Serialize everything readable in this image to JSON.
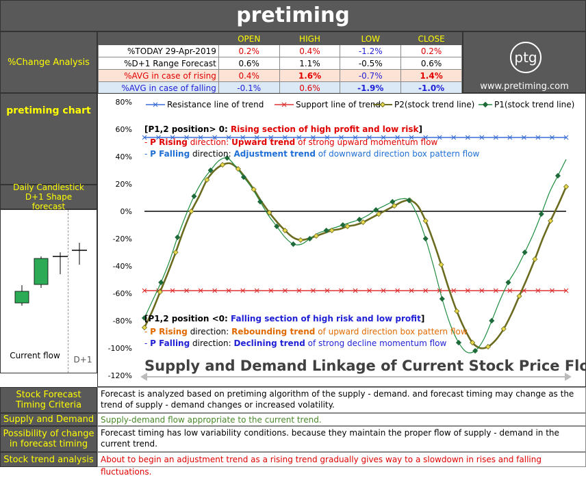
{
  "app_title": "pretiming",
  "analysis": {
    "section_label": "%Change Analysis",
    "headers": [
      "OPEN",
      "HIGH",
      "LOW",
      "CLOSE"
    ],
    "rows": [
      {
        "label": "%TODAY 29-Apr-2019",
        "values": [
          "0.2%",
          "0.4%",
          "-1.2%",
          "0.2%"
        ]
      },
      {
        "label": "%D+1 Range Forecast",
        "values": [
          "0.6%",
          "1.1%",
          "-0.5%",
          "0.6%"
        ]
      },
      {
        "label": "%AVG in case of rising",
        "values": [
          "0.4%",
          "1.6%",
          "-0.7%",
          "1.4%"
        ]
      },
      {
        "label": "%AVG in case of falling",
        "values": [
          "-0.1%",
          "0.6%",
          "-1.9%",
          "-1.0%"
        ]
      }
    ]
  },
  "logo": {
    "text": "ptg",
    "url": "www.pretiming.com"
  },
  "side": {
    "chart_label": "pretiming chart",
    "candle_label": "Daily Candlestick D+1 Shape forecast",
    "current_flow": "Current flow",
    "d1": "D+1"
  },
  "chart_data": {
    "type": "line",
    "ylim": [
      -120,
      80
    ],
    "yticks": [
      "80%",
      "60%",
      "40%",
      "20%",
      "0%",
      "-20%",
      "-40%",
      "-60%",
      "-80%",
      "-100%",
      "-120%"
    ],
    "series": [
      {
        "name": "Resistance line of trend",
        "color": "#3a6fd8",
        "values": [
          54,
          54,
          54,
          54,
          54,
          54,
          54,
          54,
          54,
          54,
          54,
          54,
          54,
          54,
          54,
          54,
          54,
          54,
          54,
          54,
          54,
          54,
          54,
          54,
          54,
          54,
          54,
          54,
          54,
          54,
          54,
          54,
          54,
          54,
          54,
          54,
          54,
          54,
          54,
          54,
          54,
          54,
          54,
          54,
          54,
          54,
          54,
          54,
          54,
          54,
          54,
          54,
          54,
          54,
          54,
          54,
          54,
          54,
          54,
          54,
          54
        ]
      },
      {
        "name": "Support line of trend",
        "color": "#e03030",
        "values": [
          -58,
          -58,
          -58,
          -58,
          -58,
          -58,
          -58,
          -58,
          -58,
          -58,
          -58,
          -58,
          -58,
          -58,
          -58,
          -58,
          -58,
          -58,
          -58,
          -58,
          -58,
          -58,
          -58,
          -58,
          -58,
          -58,
          -58,
          -58,
          -58,
          -58,
          -58,
          -58,
          -58,
          -58,
          -58,
          -58,
          -58,
          -58,
          -58,
          -58,
          -58,
          -58,
          -58,
          -58,
          -58,
          -58,
          -58,
          -58,
          -58,
          -58,
          -58,
          -58,
          -58,
          -58,
          -58,
          -58,
          -58,
          -58,
          -58,
          -58,
          -58
        ]
      },
      {
        "name": "P2(stock trend line)",
        "color": "#6b6b1f",
        "values": [
          -85,
          -73,
          -59,
          -45,
          -30,
          -14,
          0,
          11,
          23,
          30,
          34,
          35,
          31,
          24,
          16,
          7,
          -1,
          -8,
          -14,
          -19,
          -21,
          -20,
          -18,
          -16,
          -14,
          -13,
          -11,
          -10,
          -8,
          -5,
          -2,
          1,
          4,
          7,
          8,
          4,
          -7,
          -22,
          -39,
          -57,
          -73,
          -86,
          -96,
          -100,
          -99,
          -94,
          -86,
          -75,
          -62,
          -49,
          -35,
          -20,
          -7,
          5,
          18
        ]
      },
      {
        "name": "P1(stock trend line)",
        "color": "#1e8c3e",
        "values": [
          -78,
          -65,
          -52,
          -37,
          -19,
          -3,
          11,
          22,
          30,
          37,
          39,
          33,
          25,
          17,
          7,
          -3,
          -11,
          -19,
          -24,
          -24,
          -20,
          -16,
          -14,
          -12,
          -10,
          -8,
          -6,
          -3,
          1,
          4,
          7,
          9,
          8,
          -3,
          -20,
          -41,
          -64,
          -83,
          -96,
          -103,
          -102,
          -94,
          -80,
          -65,
          -52,
          -42,
          -30,
          -17,
          -2,
          14,
          26,
          38
        ]
      }
    ]
  },
  "annotations": {
    "up_head_pre": "[P1,2 position> 0: ",
    "up_head_main": "Rising section of high profit and low risk",
    "up_head_post": "]",
    "up_l1_pre": "- ",
    "up_l1_dir": "P Rising",
    "up_l1_mid": " direction: ",
    "up_l1_trend": "Upward trend",
    "up_l1_tail": " of strong upward momentum flow",
    "up_l2_pre": "- ",
    "up_l2_dir": "P Falling",
    "up_l2_mid": " direction: ",
    "up_l2_trend": "Adjustment trend",
    "up_l2_tail": " of downward direction box pattern flow",
    "down_head_pre": "[P1,2 position <0: ",
    "down_head_main": "Falling section of high risk and low profit",
    "down_head_post": "]",
    "dn_l1_pre": "- ",
    "dn_l1_dir": "P Rising",
    "dn_l1_mid": " direction: ",
    "dn_l1_trend": "Rebounding trend",
    "dn_l1_tail": " of upward direction box pattern flow",
    "dn_l2_pre": "- ",
    "dn_l2_dir": "P Falling",
    "dn_l2_mid": " direction: ",
    "dn_l2_trend": "Declining trend",
    "dn_l2_tail": " of strong decline momentum flow",
    "banner": "Supply and Demand Linkage of Current Stock Price Flow"
  },
  "info_rows": [
    {
      "label": "Stock Forecast Timing Criteria",
      "text": "Forecast is analyzed based on pretiming algorithm of the supply - demand. and forecast timing may change as the trend of supply - demand changes or increased volatility."
    },
    {
      "label": "Supply and Demand",
      "text": "Supply-demand flow appropriate to the current trend."
    },
    {
      "label": "Possibility of change in forecast timing",
      "text": "Forecast timing has low variability conditions. because they maintain the proper flow of supply - demand in the current trend."
    },
    {
      "label": "Stock trend analysis",
      "text": "About to begin an adjustment trend as a rising trend gradually gives way to a slowdown in rises and falling fluctuations."
    }
  ]
}
